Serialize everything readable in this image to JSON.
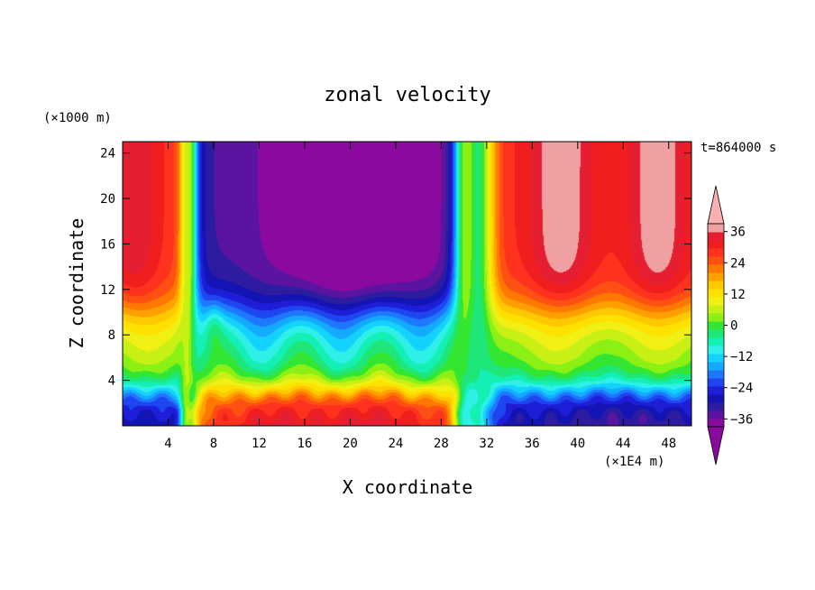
{
  "chart_data": {
    "type": "heatmap",
    "title": "zonal velocity",
    "xlabel": "X coordinate",
    "ylabel": "Z coordinate",
    "x_unit": "(×1E4 m)",
    "y_unit": "(×1000 m)",
    "time_label": "t=864000 s",
    "xlim": [
      0,
      50
    ],
    "ylim": [
      0,
      25
    ],
    "x_ticks": [
      4,
      8,
      12,
      16,
      20,
      24,
      28,
      32,
      36,
      40,
      44,
      48
    ],
    "y_ticks": [
      4,
      8,
      12,
      16,
      20,
      24
    ],
    "colorbar": {
      "tick_labels": [
        "36",
        "24",
        "12",
        "0",
        "−12",
        "−24",
        "−36"
      ],
      "tick_values": [
        36,
        24,
        12,
        0,
        -12,
        -24,
        -36
      ],
      "level_min": -42,
      "level_max": 42,
      "level_step": 3,
      "extend": "both",
      "colors": [
        "#8a0aa0",
        "#5a14a0",
        "#2e1ca0",
        "#1414b4",
        "#1e1ed8",
        "#1e46f0",
        "#1e78ff",
        "#14aaff",
        "#14d2ff",
        "#2ef0e6",
        "#14f0b4",
        "#1ee678",
        "#32e632",
        "#8cf014",
        "#c8f014",
        "#f0f014",
        "#ffe100",
        "#ffc800",
        "#ffa000",
        "#ff7800",
        "#ff5014",
        "#ff321e",
        "#f01e1e",
        "#e61e32",
        "#f0a0a0"
      ],
      "low_extend_color": "#8a0aa0",
      "high_extend_color": "#f8b0b0"
    },
    "field_description": "zonal velocity U(x,z): westerly jets near z=12-25 at x<6 and x>33, easterly core x=6-30 aloft, reversed sign near surface"
  }
}
